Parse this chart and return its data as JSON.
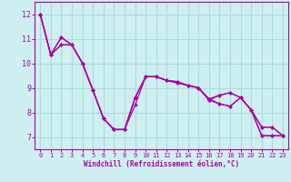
{
  "xlabel": "Windchill (Refroidissement éolien,°C)",
  "xlim": [
    -0.5,
    23.5
  ],
  "ylim": [
    6.5,
    12.5
  ],
  "yticks": [
    7,
    8,
    9,
    10,
    11,
    12
  ],
  "xticks": [
    0,
    1,
    2,
    3,
    4,
    5,
    6,
    7,
    8,
    9,
    10,
    11,
    12,
    13,
    14,
    15,
    16,
    17,
    18,
    19,
    20,
    21,
    22,
    23
  ],
  "bg_color": "#cff0f0",
  "grid_color": "#aadddd",
  "line_color": "#aa00aa",
  "line1_y": [
    12.0,
    10.35,
    10.75,
    10.75,
    10.0,
    8.9,
    7.75,
    7.3,
    7.3,
    8.3,
    9.45,
    9.45,
    9.3,
    9.2,
    9.1,
    9.0,
    8.5,
    8.35,
    8.25,
    8.6,
    8.1,
    7.05,
    7.05,
    7.05
  ],
  "line2_y": [
    12.0,
    10.35,
    10.75,
    10.75,
    10.0,
    8.9,
    7.75,
    7.3,
    7.3,
    8.6,
    9.45,
    9.45,
    9.3,
    9.2,
    9.1,
    9.0,
    8.5,
    8.7,
    8.8,
    8.6,
    8.1,
    7.4,
    7.4,
    7.05
  ],
  "line3_y": [
    12.0,
    10.35,
    11.05,
    10.75,
    10.0,
    8.9,
    7.75,
    7.3,
    7.3,
    8.6,
    9.45,
    9.45,
    9.3,
    9.25,
    9.1,
    9.0,
    8.55,
    8.35,
    8.25,
    8.6,
    8.1,
    7.05,
    7.05,
    7.05
  ],
  "line4_y": [
    12.0,
    10.35,
    11.05,
    10.75,
    10.0,
    8.9,
    7.75,
    7.3,
    7.3,
    8.6,
    9.45,
    9.45,
    9.3,
    9.25,
    9.1,
    9.0,
    8.55,
    8.7,
    8.8,
    8.6,
    8.1,
    7.4,
    7.4,
    7.05
  ]
}
